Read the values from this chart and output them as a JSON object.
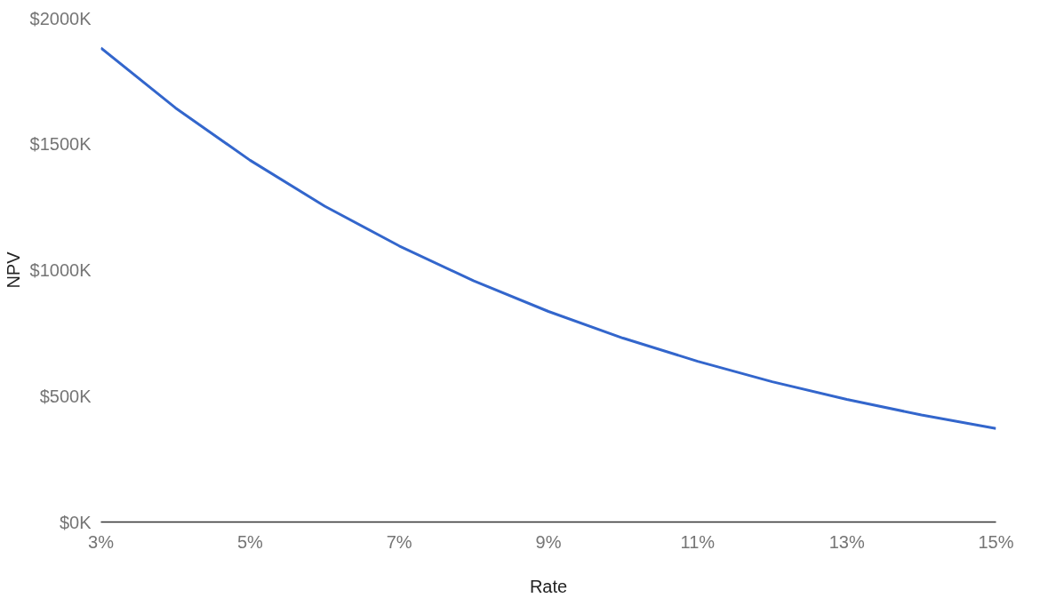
{
  "chart_data": {
    "type": "line",
    "xlabel": "Rate",
    "ylabel": "NPV",
    "x": [
      3,
      4,
      5,
      6,
      7,
      8,
      9,
      10,
      11,
      12,
      13,
      14,
      15
    ],
    "series": [
      {
        "color": "#3366cc",
        "values": [
          1882,
          1644,
          1436,
          1254,
          1096,
          957,
          836,
          730,
          638,
          557,
          487,
          425,
          371
        ]
      }
    ],
    "xlim": [
      3,
      15
    ],
    "ylim": [
      0,
      2000
    ],
    "xticks": [
      {
        "value": 3,
        "label": "3%"
      },
      {
        "value": 5,
        "label": "5%"
      },
      {
        "value": 7,
        "label": "7%"
      },
      {
        "value": 9,
        "label": "9%"
      },
      {
        "value": 11,
        "label": "11%"
      },
      {
        "value": 13,
        "label": "13%"
      },
      {
        "value": 15,
        "label": "15%"
      }
    ],
    "yticks": [
      {
        "value": 0,
        "label": "$0K"
      },
      {
        "value": 500,
        "label": "$500K"
      },
      {
        "value": 1000,
        "label": "$1000K"
      },
      {
        "value": 1500,
        "label": "$1500K"
      },
      {
        "value": 2000,
        "label": "$2000K"
      }
    ],
    "grid": false,
    "marker": "none",
    "line_style": "solid"
  }
}
